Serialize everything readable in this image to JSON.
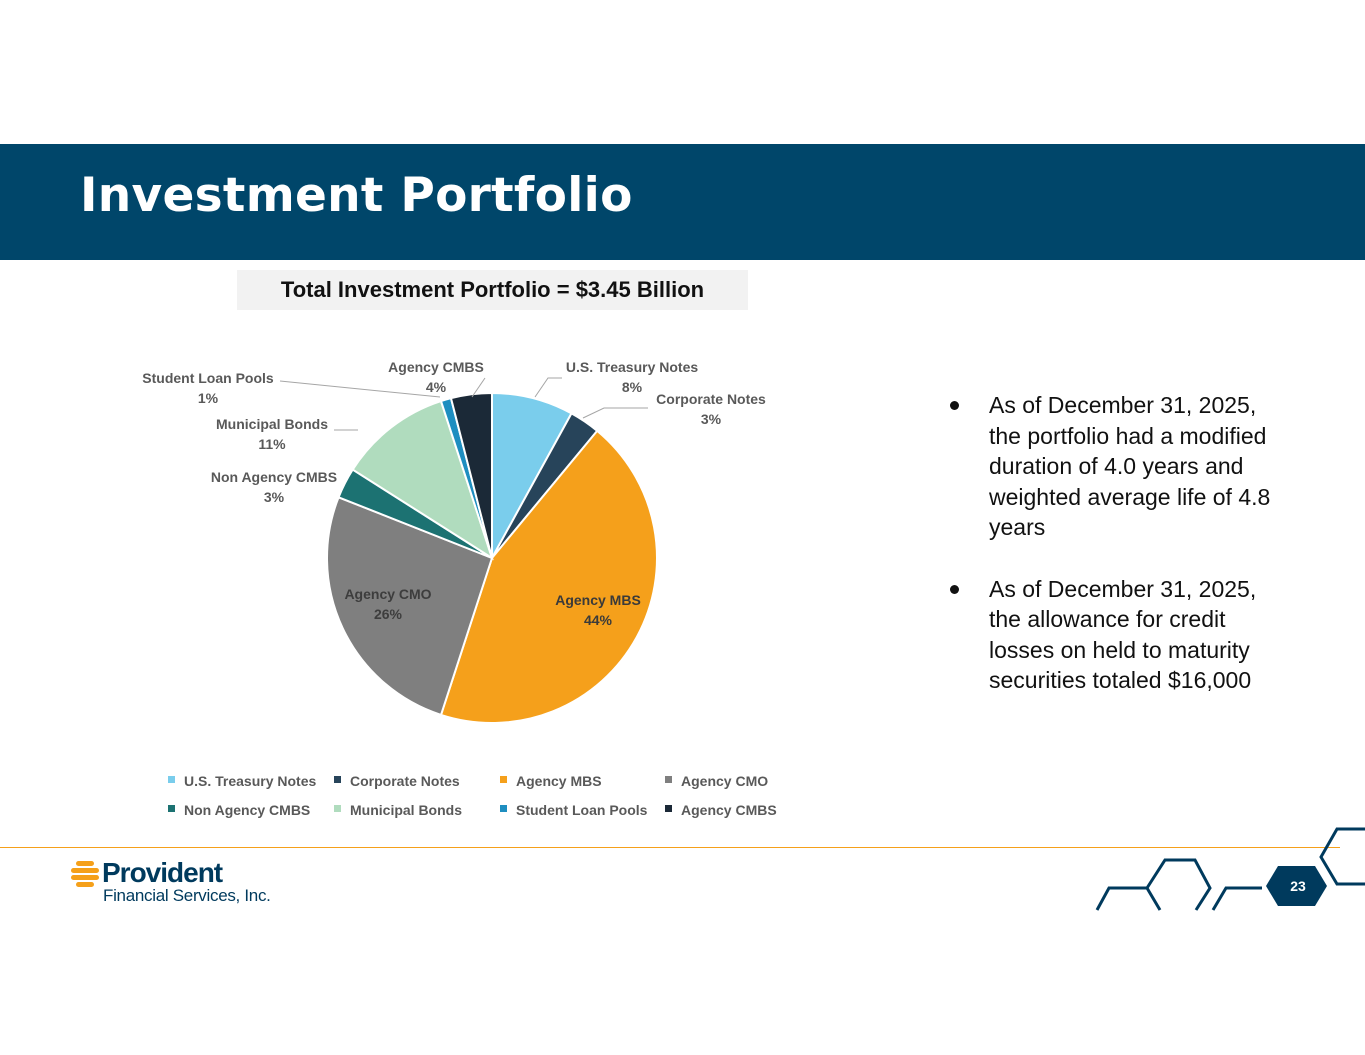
{
  "header": {
    "title": "Investment Portfolio"
  },
  "total_label": "Total Investment Portfolio = $3.45 Billion",
  "bullets": [
    "As of December 31, 2025, the portfolio had a modified duration of 4.0 years and weighted average life of 4.8 years",
    "As of December 31, 2025, the allowance for credit losses on held to maturity securities totaled $16,000"
  ],
  "footer": {
    "logo_name": "Provident",
    "logo_sub": "Financial Services, Inc.",
    "page_number": "23"
  },
  "colors": {
    "header_band": "#00466a",
    "rule": "#f5a01a",
    "hex_outline": "#003a5d"
  },
  "chart_data": {
    "type": "pie",
    "title": "",
    "start_angle_deg": 0,
    "direction": "clockwise",
    "categories": [
      "U.S. Treasury Notes",
      "Corporate Notes",
      "Agency MBS",
      "Agency CMO",
      "Non Agency CMBS",
      "Municipal Bonds",
      "Student Loan Pools",
      "Agency CMBS"
    ],
    "values": [
      8,
      3,
      44,
      26,
      3,
      11,
      1,
      4
    ],
    "value_labels": [
      "8%",
      "3%",
      "44%",
      "26%",
      "3%",
      "11%",
      "1%",
      "4%"
    ],
    "colors": [
      "#7acdec",
      "#27445a",
      "#f5a01b",
      "#7f7f7f",
      "#1c7272",
      "#b0dcbe",
      "#1e8ec0",
      "#1b2937"
    ],
    "legend": {
      "position": "bottom",
      "rows": 2
    }
  }
}
